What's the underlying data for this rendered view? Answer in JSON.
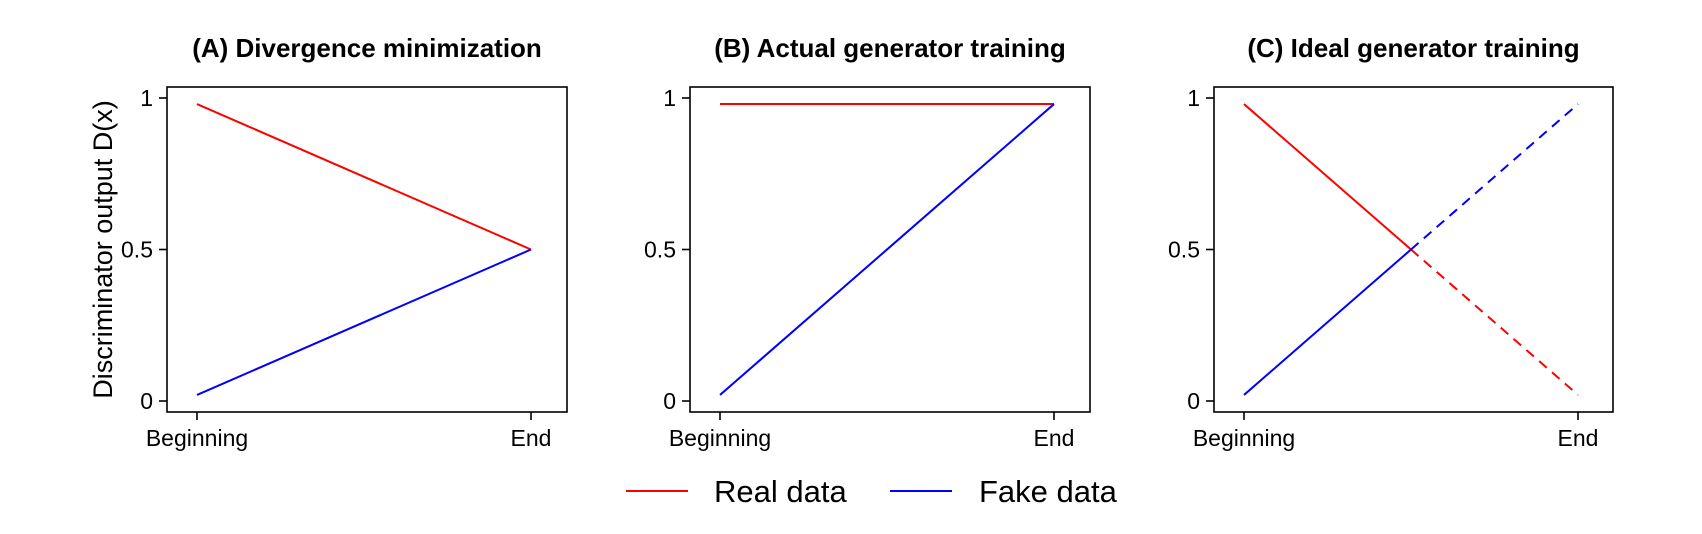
{
  "chart_data": [
    {
      "type": "line",
      "title": "(A) Divergence minimization",
      "ylabel": "Discriminator output D(x)",
      "xlabel": "",
      "categories": [
        "Beginning",
        "End"
      ],
      "y_ticks": [
        "0",
        "0.5",
        "1"
      ],
      "ylim": [
        0,
        1
      ],
      "grid": false,
      "series": [
        {
          "name": "Real data",
          "color": "#ff0000",
          "points": [
            [
              0,
              0.98
            ],
            [
              1,
              0.5
            ]
          ],
          "solid_until": 1
        },
        {
          "name": "Fake data",
          "color": "#0000ff",
          "points": [
            [
              0,
              0.02
            ],
            [
              1,
              0.5
            ]
          ],
          "solid_until": 1
        }
      ]
    },
    {
      "type": "line",
      "title": "(B) Actual generator training",
      "ylabel": "",
      "xlabel": "",
      "categories": [
        "Beginning",
        "End"
      ],
      "y_ticks": [
        "0",
        "0.5",
        "1"
      ],
      "ylim": [
        0,
        1
      ],
      "grid": false,
      "series": [
        {
          "name": "Real data",
          "color": "#ff0000",
          "points": [
            [
              0,
              0.98
            ],
            [
              1,
              0.98
            ]
          ],
          "solid_until": 1
        },
        {
          "name": "Fake data",
          "color": "#0000ff",
          "points": [
            [
              0,
              0.02
            ],
            [
              1,
              0.98
            ]
          ],
          "solid_until": 1
        }
      ]
    },
    {
      "type": "line",
      "title": "(C) Ideal generator training",
      "ylabel": "",
      "xlabel": "",
      "categories": [
        "Beginning",
        "End"
      ],
      "y_ticks": [
        "0",
        "0.5",
        "1"
      ],
      "ylim": [
        0,
        1
      ],
      "grid": false,
      "series": [
        {
          "name": "Real data",
          "color": "#ff0000",
          "points": [
            [
              0,
              0.98
            ],
            [
              1,
              0.02
            ]
          ],
          "solid_until": 0.5,
          "after_style": "dashed"
        },
        {
          "name": "Fake data",
          "color": "#0000ff",
          "points": [
            [
              0,
              0.02
            ],
            [
              1,
              0.98
            ]
          ],
          "solid_until": 0.5,
          "after_style": "dashed"
        }
      ]
    }
  ],
  "legend": {
    "placement": "bottom-center",
    "items": [
      {
        "label": "Real data",
        "color": "#ff0000"
      },
      {
        "label": "Fake data",
        "color": "#0000ff"
      }
    ]
  }
}
